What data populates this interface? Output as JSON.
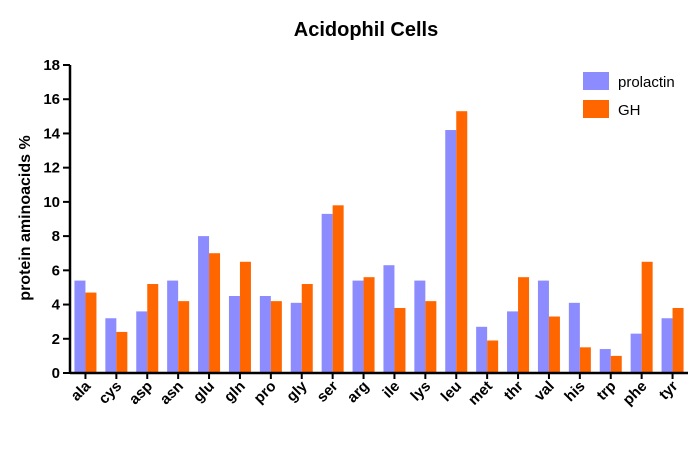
{
  "chart_data": {
    "type": "bar",
    "title": "Acidophil Cells",
    "xlabel": "",
    "ylabel": "protein aminoacids %",
    "ylim": [
      0,
      18
    ],
    "yticks": [
      0,
      2,
      4,
      6,
      8,
      10,
      12,
      14,
      16,
      18
    ],
    "grid": false,
    "legend_position": "top-right",
    "categories": [
      "ala",
      "cys",
      "asp",
      "asn",
      "glu",
      "gln",
      "pro",
      "gly",
      "ser",
      "arg",
      "ile",
      "lys",
      "leu",
      "met",
      "thr",
      "val",
      "his",
      "trp",
      "phe",
      "tyr"
    ],
    "series": [
      {
        "name": "prolactin",
        "color": "#8c8cff",
        "values": [
          5.4,
          3.2,
          3.6,
          5.4,
          8.0,
          4.5,
          4.5,
          4.1,
          9.3,
          5.4,
          6.3,
          5.4,
          14.2,
          2.7,
          3.6,
          5.4,
          4.1,
          1.4,
          2.3,
          3.2
        ]
      },
      {
        "name": "GH",
        "color": "#ff6600",
        "values": [
          4.7,
          2.4,
          5.2,
          4.2,
          7.0,
          6.5,
          4.2,
          5.2,
          9.8,
          5.6,
          3.8,
          4.2,
          15.3,
          1.9,
          5.6,
          3.3,
          1.5,
          1.0,
          6.5,
          3.8
        ]
      }
    ]
  }
}
